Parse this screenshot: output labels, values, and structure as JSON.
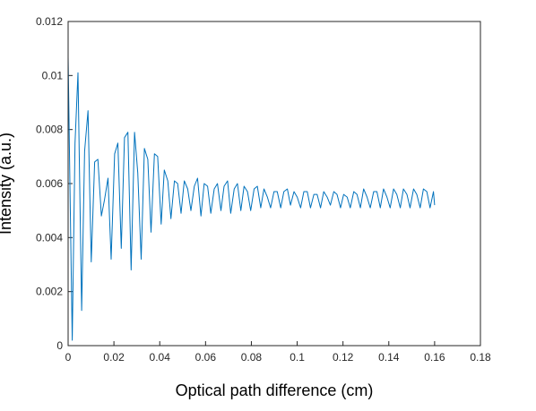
{
  "chart_data": {
    "type": "line",
    "title": "",
    "xlabel": "Optical path difference (cm)",
    "ylabel": "Intensity (a.u.)",
    "xlim": [
      0,
      0.18
    ],
    "ylim": [
      0,
      0.012
    ],
    "xticks": [
      "0",
      "0.02",
      "0.04",
      "0.06",
      "0.08",
      "0.1",
      "0.12",
      "0.14",
      "0.16",
      "0.18"
    ],
    "yticks": [
      "0",
      "0.002",
      "0.004",
      "0.006",
      "0.008",
      "0.01",
      "0.012"
    ],
    "grid": false,
    "box": true,
    "series": [
      {
        "color": "#0072BD",
        "x": [
          0,
          0.0008,
          0.0018,
          0.003,
          0.0043,
          0.0059,
          0.0072,
          0.0087,
          0.0101,
          0.0116,
          0.013,
          0.0145,
          0.0159,
          0.0174,
          0.0188,
          0.0203,
          0.0217,
          0.0232,
          0.0246,
          0.0261,
          0.0275,
          0.029,
          0.0304,
          0.0319,
          0.0333,
          0.0348,
          0.0362,
          0.0377,
          0.0391,
          0.0406,
          0.042,
          0.0435,
          0.0449,
          0.0464,
          0.0478,
          0.0493,
          0.0507,
          0.0522,
          0.0536,
          0.0551,
          0.0565,
          0.058,
          0.0594,
          0.0609,
          0.0623,
          0.0638,
          0.0652,
          0.0667,
          0.0681,
          0.0696,
          0.071,
          0.0725,
          0.0739,
          0.0754,
          0.0768,
          0.0783,
          0.0797,
          0.0812,
          0.0826,
          0.0841,
          0.0855,
          0.087,
          0.0884,
          0.0899,
          0.0913,
          0.0928,
          0.0942,
          0.0957,
          0.0971,
          0.0986,
          0.1,
          0.1015,
          0.1029,
          0.1044,
          0.1058,
          0.1073,
          0.1087,
          0.1102,
          0.1116,
          0.1131,
          0.1145,
          0.116,
          0.1174,
          0.1189,
          0.1203,
          0.1218,
          0.1232,
          0.1247,
          0.1261,
          0.1276,
          0.129,
          0.1305,
          0.1319,
          0.1334,
          0.1348,
          0.1363,
          0.1377,
          0.1392,
          0.1406,
          0.1421,
          0.1435,
          0.145,
          0.1464,
          0.1479,
          0.1493,
          0.1508,
          0.1522,
          0.1537,
          0.1551,
          0.1566,
          0.158,
          0.1595,
          0.16
        ],
        "y": [
          0.0107,
          0.006,
          0.0002,
          0.0075,
          0.0101,
          0.0013,
          0.0072,
          0.0087,
          0.0031,
          0.0068,
          0.0069,
          0.0048,
          0.0054,
          0.0062,
          0.0032,
          0.0071,
          0.0075,
          0.0036,
          0.0077,
          0.0079,
          0.0028,
          0.0079,
          0.0064,
          0.0032,
          0.0073,
          0.0069,
          0.0042,
          0.0071,
          0.007,
          0.0045,
          0.0065,
          0.0061,
          0.0047,
          0.0061,
          0.006,
          0.0049,
          0.0061,
          0.0058,
          0.005,
          0.0059,
          0.0062,
          0.0048,
          0.006,
          0.0059,
          0.0049,
          0.0058,
          0.006,
          0.005,
          0.0059,
          0.0061,
          0.0049,
          0.0058,
          0.006,
          0.005,
          0.0059,
          0.0057,
          0.005,
          0.0058,
          0.0059,
          0.0051,
          0.0058,
          0.0055,
          0.0051,
          0.0057,
          0.0057,
          0.0051,
          0.0057,
          0.0058,
          0.0052,
          0.0057,
          0.0055,
          0.0051,
          0.0057,
          0.0057,
          0.0051,
          0.0056,
          0.0056,
          0.0051,
          0.0057,
          0.0055,
          0.0052,
          0.0057,
          0.0056,
          0.0051,
          0.0056,
          0.0055,
          0.0051,
          0.0057,
          0.0056,
          0.0051,
          0.0058,
          0.0055,
          0.0051,
          0.0057,
          0.0057,
          0.0051,
          0.0058,
          0.0055,
          0.0051,
          0.0058,
          0.0056,
          0.0051,
          0.0058,
          0.0056,
          0.0051,
          0.0058,
          0.0056,
          0.0051,
          0.0058,
          0.0057,
          0.0051,
          0.0057,
          0.0052
        ]
      }
    ]
  }
}
